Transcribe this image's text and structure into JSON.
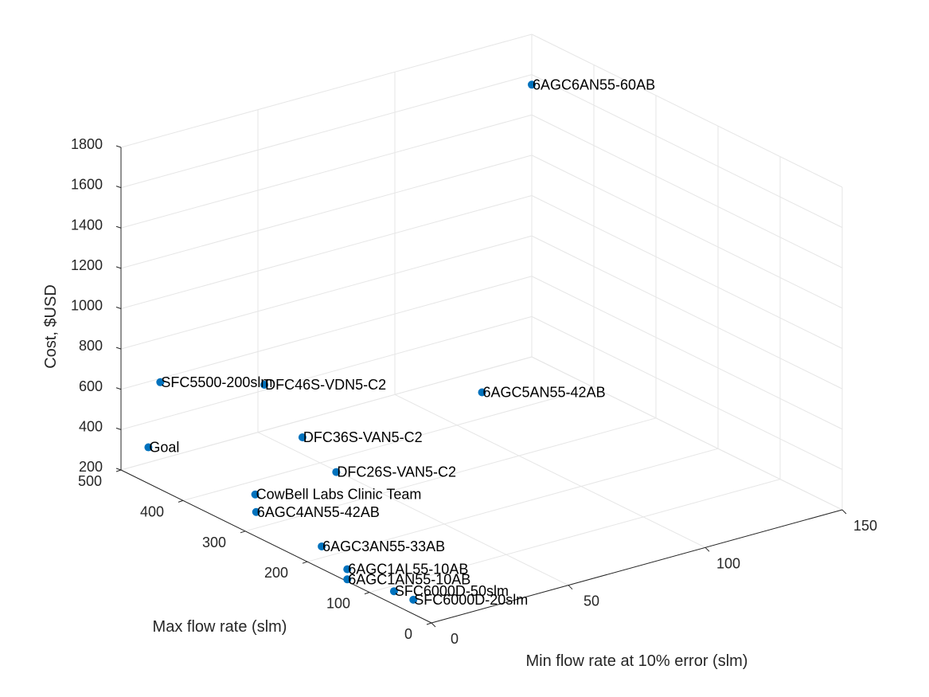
{
  "chart_data": {
    "type": "scatter",
    "title": "",
    "xlabel": "Min flow rate at 10% error (slm)",
    "ylabel": "Max flow rate (slm)",
    "zlabel": "Cost, $USD",
    "xlim": [
      0,
      150
    ],
    "ylim": [
      0,
      500
    ],
    "zlim": [
      200,
      1800
    ],
    "xticks": [
      "0",
      "50",
      "100",
      "150"
    ],
    "yticks": [
      "0",
      "100",
      "200",
      "300",
      "400",
      "500"
    ],
    "zticks": [
      "200",
      "400",
      "600",
      "800",
      "1000",
      "1200",
      "1400",
      "1600",
      "1800"
    ],
    "grid": true,
    "marker_color": "#0072bd",
    "points": [
      {
        "label": "6AGC6AN55-60AB",
        "x": 150,
        "y": 500,
        "z": 1550
      },
      {
        "label": "DFC46S-VDN5-C2",
        "x": 7,
        "y": 300,
        "z": 900
      },
      {
        "label": "6AGC5AN55-42AB",
        "x": 40,
        "y": 95,
        "z": 1050
      },
      {
        "label": "DFC36S-VAN5-C2",
        "x": 0.5,
        "y": 210,
        "z": 800
      },
      {
        "label": "SFC5500-200slm",
        "x": 3,
        "y": 450,
        "z": 700
      },
      {
        "label": "DFC26S-VAN5-C2",
        "x": 1.5,
        "y": 160,
        "z": 700
      },
      {
        "label": "6AGC4AN55-42AB",
        "x": 4,
        "y": 300,
        "z": 280
      },
      {
        "label": "6AGC3AN55-33AB",
        "x": 3,
        "y": 190,
        "z": 280
      },
      {
        "label": "6AGC1AL55-10AB",
        "x": 1,
        "y": 140,
        "z": 250
      },
      {
        "label": "6AGC1AN55-10AB",
        "x": 1,
        "y": 140,
        "z": 200
      },
      {
        "label": "Goal",
        "x": 10,
        "y": 500,
        "z": 275
      },
      {
        "label": "CowBell Labs Clinic Team",
        "x": 15,
        "y": 350,
        "z": 250
      },
      {
        "label": "SFC6000D-50slm",
        "x": 1.5,
        "y": 67,
        "z": 250
      },
      {
        "label": "SFC6000D-20slm",
        "x": 2,
        "y": 38,
        "z": 250
      }
    ]
  }
}
